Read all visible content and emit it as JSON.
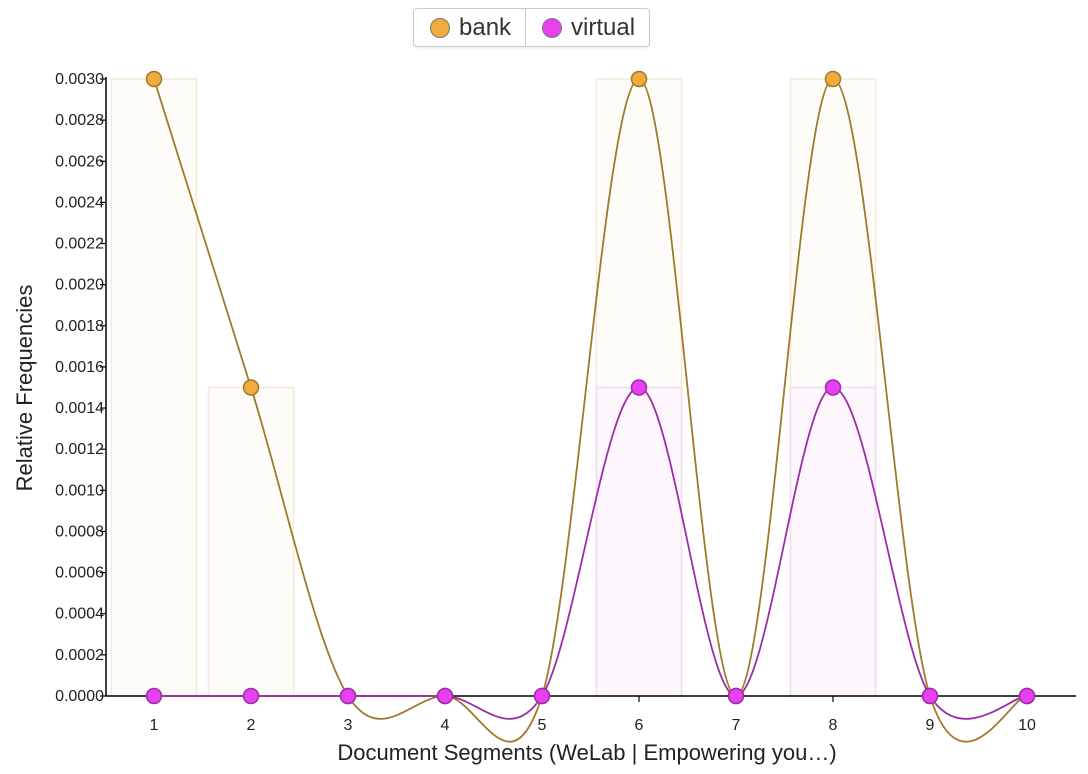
{
  "legend": {
    "items": [
      {
        "label": "bank",
        "color": "#f0ab3c"
      },
      {
        "label": "virtual",
        "color": "#e83ff0"
      }
    ]
  },
  "colors": {
    "bank_line": "#a07a2a",
    "bank_fill": "#f0ab3c",
    "virtual_line": "#9a2ea6",
    "virtual_fill": "#e83ff0",
    "axis": "#000000"
  },
  "chart_data": {
    "type": "line",
    "xlabel": "Document Segments (WeLab | Empowering you…)",
    "ylabel": "Relative Frequencies",
    "x": [
      1,
      2,
      3,
      4,
      5,
      6,
      7,
      8,
      9,
      10
    ],
    "ylim": [
      0,
      0.003
    ],
    "yticks": [
      "0.0000",
      "0.0002",
      "0.0004",
      "0.0006",
      "0.0008",
      "0.0010",
      "0.0012",
      "0.0014",
      "0.0016",
      "0.0018",
      "0.0020",
      "0.0022",
      "0.0024",
      "0.0026",
      "0.0028",
      "0.0030"
    ],
    "series": [
      {
        "name": "bank",
        "values": [
          0.003,
          0.0015,
          0,
          0,
          0,
          0.003,
          0,
          0.003,
          0,
          0
        ]
      },
      {
        "name": "virtual",
        "values": [
          0,
          0,
          0,
          0,
          0,
          0.0015,
          0,
          0.0015,
          0,
          0
        ]
      }
    ],
    "grid": false,
    "legend_position": "top-center"
  }
}
